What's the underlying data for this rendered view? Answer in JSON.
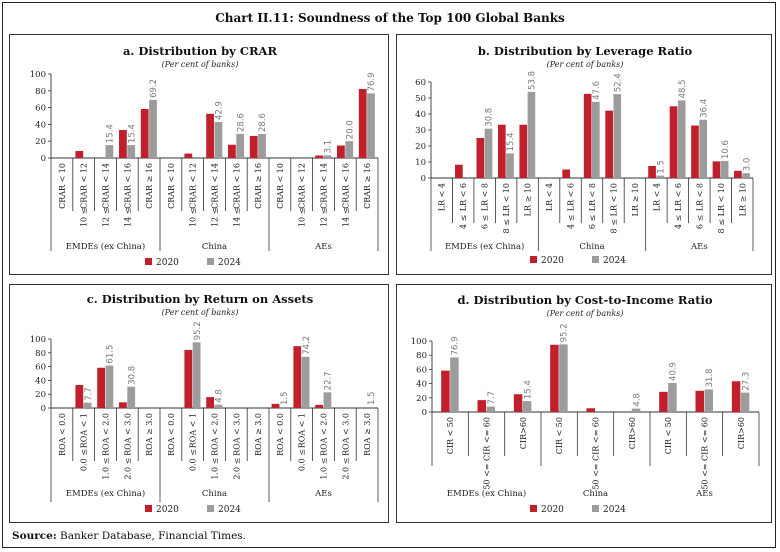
{
  "title": "Chart II.11: Soundness of the Top 100 Global Banks",
  "source_label": "Source:",
  "source_text": "Banker Database, Financial Times.",
  "colors": {
    "2020": "#c11f2c",
    "2024": "#9c9c9c",
    "value_label": "#7a7a7a"
  },
  "chart_data": [
    {
      "type": "bar",
      "title": "a. Distribution by CRAR",
      "subtitle": "(Per cent of banks)",
      "ylim": [
        0,
        100
      ],
      "yticks": [
        0,
        20,
        40,
        60,
        80,
        100
      ],
      "groups": [
        "EMDEs (ex China)",
        "China",
        "AEs"
      ],
      "categories": [
        "CRAR < 10",
        "10 ≤ CRAR < 12",
        "12 ≤ CRAR < 14",
        "14 ≤ CRAR < 16",
        "CRAR ≥ 16"
      ],
      "legend": [
        "2020",
        "2024"
      ],
      "series": [
        {
          "name": "2020",
          "values": [
            [
              0,
              8.3,
              0,
              33.3,
              58.3
            ],
            [
              0,
              5.3,
              52.6,
              15.8,
              26.3
            ],
            [
              0,
              0,
              3.0,
              14.9,
              82.1
            ]
          ]
        },
        {
          "name": "2024",
          "values": [
            [
              0,
              0,
              15.4,
              15.4,
              69.2
            ],
            [
              0,
              0,
              42.9,
              28.6,
              28.6
            ],
            [
              0,
              0,
              3.1,
              20.0,
              76.9
            ]
          ],
          "labels": [
            [
              "",
              "",
              "15.4",
              "15.4",
              "69.2"
            ],
            [
              "",
              "",
              "42.9",
              "28.6",
              "28.6"
            ],
            [
              "",
              "",
              "3.1",
              "20.0",
              "76.9"
            ]
          ]
        }
      ]
    },
    {
      "type": "bar",
      "title": "b. Distribution by Leverage Ratio",
      "subtitle": "(Per cent of banks)",
      "ylim": [
        0,
        60
      ],
      "yticks": [
        0,
        10,
        20,
        30,
        40,
        50,
        60
      ],
      "groups": [
        "EMDEs (ex China)",
        "China",
        "AEs"
      ],
      "categories": [
        "LR < 4",
        "4 ≤ LR < 6",
        "6 ≤ LR < 8",
        "8 ≤ LR < 10",
        "LR ≥ 10"
      ],
      "legend": [
        "2020",
        "2024"
      ],
      "series": [
        {
          "name": "2020",
          "values": [
            [
              0,
              8.3,
              25.0,
              33.3,
              33.3
            ],
            [
              0,
              5.3,
              52.6,
              42.1,
              0
            ],
            [
              7.5,
              44.8,
              32.8,
              10.4,
              4.5
            ]
          ]
        },
        {
          "name": "2024",
          "values": [
            [
              0,
              0,
              30.8,
              15.4,
              53.8
            ],
            [
              0,
              0,
              47.6,
              52.4,
              0
            ],
            [
              1.5,
              48.5,
              36.4,
              10.6,
              3.0
            ]
          ],
          "labels": [
            [
              "",
              "",
              "30.8",
              "15.4",
              "53.8"
            ],
            [
              "",
              "",
              "47.6",
              "52.4",
              ""
            ],
            [
              "1.5",
              "48.5",
              "36.4",
              "10.6",
              "3.0"
            ]
          ]
        }
      ]
    },
    {
      "type": "bar",
      "title": "c. Distribution by Return on Assets",
      "subtitle": "(Per cent of banks)",
      "ylim": [
        0,
        100
      ],
      "yticks": [
        0,
        20,
        40,
        60,
        80,
        100
      ],
      "groups": [
        "EMDEs (ex China)",
        "China",
        "AEs"
      ],
      "categories": [
        "ROA < 0.0",
        "0.0 ≤ ROA < 1",
        "1.0 ≤ ROA < 2.0",
        "2.0 ≤ ROA < 3.0",
        "ROA ≥ 3.0"
      ],
      "legend": [
        "2020",
        "2024"
      ],
      "series": [
        {
          "name": "2020",
          "values": [
            [
              0,
              33.3,
              58.3,
              8.3,
              0
            ],
            [
              0,
              84.2,
              15.8,
              0,
              0
            ],
            [
              6.0,
              89.6,
              4.5,
              0,
              0
            ]
          ]
        },
        {
          "name": "2024",
          "values": [
            [
              0,
              7.7,
              61.5,
              30.8,
              0
            ],
            [
              0,
              95.2,
              4.8,
              0,
              0
            ],
            [
              1.5,
              74.2,
              22.7,
              0,
              1.5
            ]
          ],
          "labels": [
            [
              "",
              "7.7",
              "61.5",
              "30.8",
              ""
            ],
            [
              "",
              "95.2",
              "4.8",
              "",
              ""
            ],
            [
              "1.5",
              "74.2",
              "22.7",
              "",
              "1.5"
            ]
          ]
        }
      ]
    },
    {
      "type": "bar",
      "title": "d. Distribution by Cost-to-Income Ratio",
      "subtitle": "(Per cent of banks)",
      "ylim": [
        0,
        100
      ],
      "yticks": [
        0,
        20,
        40,
        60,
        80,
        100
      ],
      "groups": [
        "EMDEs (ex China)",
        "China",
        "AEs"
      ],
      "categories": [
        "CIR < 50",
        "50 <= CIR <= 60",
        "CIR>60"
      ],
      "legend": [
        "2020",
        "2024"
      ],
      "series": [
        {
          "name": "2020",
          "values": [
            [
              58.3,
              16.7,
              25.0
            ],
            [
              94.7,
              5.3,
              0
            ],
            [
              28.4,
              29.9,
              43.3
            ]
          ]
        },
        {
          "name": "2024",
          "values": [
            [
              76.9,
              7.7,
              15.4
            ],
            [
              95.2,
              0,
              4.8
            ],
            [
              40.9,
              31.8,
              27.3
            ]
          ],
          "labels": [
            [
              "76.9",
              "7.7",
              "15.4"
            ],
            [
              "95.2",
              "",
              "4.8"
            ],
            [
              "40.9",
              "31.8",
              "27.3"
            ]
          ]
        }
      ]
    }
  ]
}
